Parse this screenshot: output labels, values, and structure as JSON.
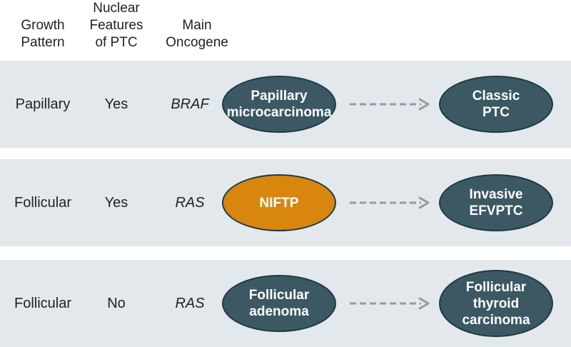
{
  "headers": {
    "growth": "Growth\nPattern",
    "nuclear": "Nuclear\nFeatures\nof PTC",
    "oncogene": "Main\nOncogene"
  },
  "rows": [
    {
      "growth": "Papillary",
      "nuclear": "Yes",
      "oncogene": "BRAF",
      "start": "Papillary\nmicrocarcinoma",
      "end": "Classic\nPTC",
      "start_color": "#3b5863"
    },
    {
      "growth": "Follicular",
      "nuclear": "Yes",
      "oncogene": "RAS",
      "start": "NIFTP",
      "end": "Invasive\nEFVPTC",
      "start_color": "#d9860e"
    },
    {
      "growth": "Follicular",
      "nuclear": "No",
      "oncogene": "RAS",
      "start": "Follicular\nadenoma",
      "end": "Follicular\nthyroid\ncarcinoma",
      "start_color": "#3b5863"
    }
  ],
  "colors": {
    "node": "#3b5863",
    "highlight": "#d9860e",
    "row_band": "#e3e8ec",
    "arrow": "#9a9a9a"
  }
}
